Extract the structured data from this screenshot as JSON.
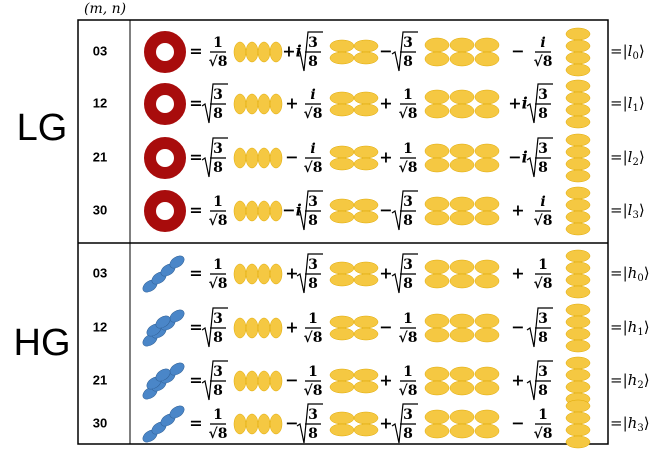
{
  "header": "(m, n)",
  "eq": "=",
  "ket_open": "|",
  "ket_close": "⟩",
  "sections": [
    {
      "label": "LG",
      "rows": [
        {
          "index": "03",
          "terms": [
            {
              "sign": "",
              "num": "1",
              "den": "√8"
            },
            {
              "sign": "+i",
              "num": "3",
              "den": "8"
            },
            {
              "sign": "−",
              "num": "3",
              "den": "8"
            },
            {
              "sign": "−",
              "num": "i",
              "den": "√8"
            }
          ],
          "ket": {
            "name": "l",
            "sub": "0"
          }
        },
        {
          "index": "12",
          "terms": [
            {
              "sign": "",
              "num": "3",
              "den": "8"
            },
            {
              "sign": "+",
              "num": "i",
              "den": "√8"
            },
            {
              "sign": "+",
              "num": "1",
              "den": "√8"
            },
            {
              "sign": "+i",
              "num": "3",
              "den": "8"
            }
          ],
          "ket": {
            "name": "l",
            "sub": "1"
          }
        },
        {
          "index": "21",
          "terms": [
            {
              "sign": "",
              "num": "3",
              "den": "8"
            },
            {
              "sign": "−",
              "num": "i",
              "den": "√8"
            },
            {
              "sign": "+",
              "num": "1",
              "den": "√8"
            },
            {
              "sign": "−i",
              "num": "3",
              "den": "8"
            }
          ],
          "ket": {
            "name": "l",
            "sub": "2"
          }
        },
        {
          "index": "30",
          "terms": [
            {
              "sign": "",
              "num": "1",
              "den": "√8"
            },
            {
              "sign": "−i",
              "num": "3",
              "den": "8"
            },
            {
              "sign": "−",
              "num": "3",
              "den": "8"
            },
            {
              "sign": "+",
              "num": "i",
              "den": "√8"
            }
          ],
          "ket": {
            "name": "l",
            "sub": "3"
          }
        }
      ]
    },
    {
      "label": "HG",
      "rows": [
        {
          "index": "03",
          "terms": [
            {
              "sign": "",
              "num": "1",
              "den": "√8"
            },
            {
              "sign": "+",
              "num": "3",
              "den": "8"
            },
            {
              "sign": "+",
              "num": "3",
              "den": "8"
            },
            {
              "sign": "+",
              "num": "1",
              "den": "√8"
            }
          ],
          "ket": {
            "name": "h",
            "sub": "0"
          }
        },
        {
          "index": "12",
          "terms": [
            {
              "sign": "",
              "num": "3",
              "den": "8"
            },
            {
              "sign": "+",
              "num": "1",
              "den": "√8"
            },
            {
              "sign": "−",
              "num": "1",
              "den": "√8"
            },
            {
              "sign": "−",
              "num": "3",
              "den": "8"
            }
          ],
          "ket": {
            "name": "h",
            "sub": "1"
          }
        },
        {
          "index": "21",
          "terms": [
            {
              "sign": "",
              "num": "3",
              "den": "8"
            },
            {
              "sign": "−",
              "num": "1",
              "den": "√8"
            },
            {
              "sign": "+",
              "num": "1",
              "den": "√8"
            },
            {
              "sign": "+",
              "num": "3",
              "den": "8"
            }
          ],
          "ket": {
            "name": "h",
            "sub": "2"
          }
        },
        {
          "index": "30",
          "terms": [
            {
              "sign": "",
              "num": "1",
              "den": "√8"
            },
            {
              "sign": "−",
              "num": "3",
              "den": "8"
            },
            {
              "sign": "+",
              "num": "3",
              "den": "8"
            },
            {
              "sign": "−",
              "num": "1",
              "den": "√8"
            }
          ],
          "ket": {
            "name": "h",
            "sub": "3"
          }
        }
      ]
    }
  ]
}
